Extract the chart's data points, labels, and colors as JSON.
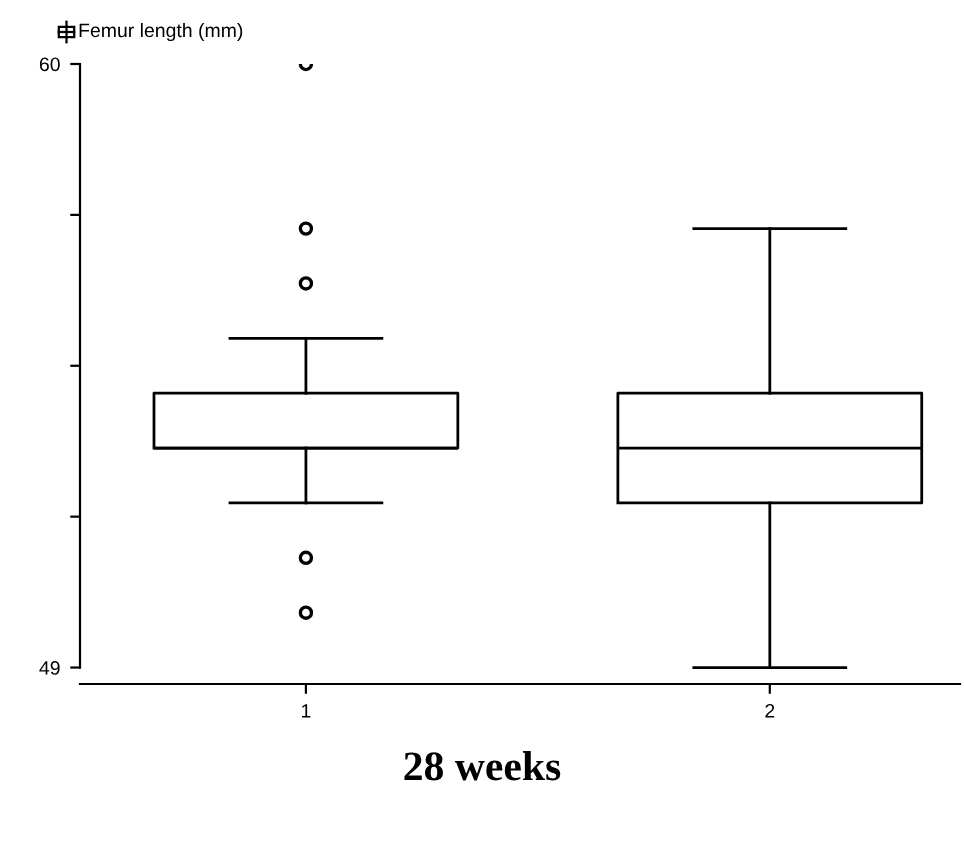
{
  "chart_data": {
    "type": "box",
    "title": "28 weeks",
    "ylabel": "Femur length (mm)",
    "categories": [
      "1",
      "2"
    ],
    "boxes": [
      {
        "low": 52,
        "q1": 53,
        "median": 53,
        "q3": 54,
        "high": 55,
        "outliers": [
          60,
          57,
          56,
          51,
          50
        ]
      },
      {
        "low": 49,
        "q1": 52,
        "median": 53,
        "q3": 54,
        "high": 57
      }
    ],
    "color": "#000000",
    "ylim": [
      48.7,
      60
    ],
    "yticks": [
      49,
      {
        "value": 51.75,
        "label": null
      },
      {
        "value": 54.5,
        "label": null
      },
      {
        "value": 57.25,
        "label": null
      },
      60
    ],
    "grid": false
  }
}
